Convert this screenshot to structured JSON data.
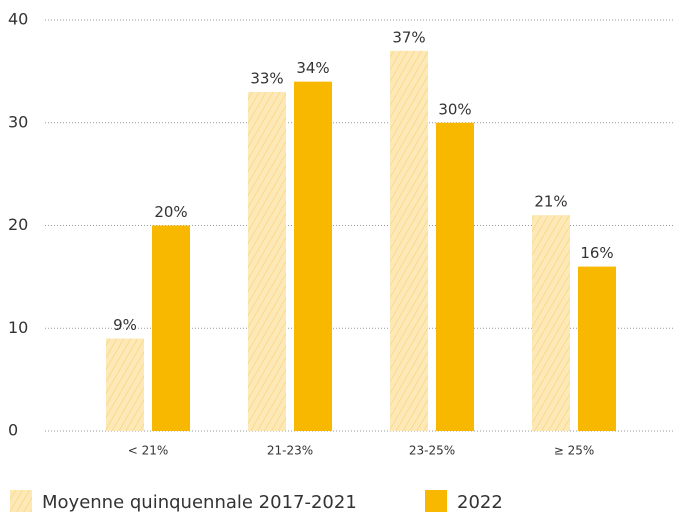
{
  "chart_data": {
    "type": "bar",
    "categories": [
      "< 21%",
      "21-23%",
      "23-25%",
      "≥ 25%"
    ],
    "series": [
      {
        "name": "Moyenne quinquennale 2017-2021",
        "color": "#fbdf9c",
        "hatch": true,
        "values": [
          9,
          33,
          37,
          21
        ],
        "value_labels": [
          "9%",
          "33%",
          "37%",
          "21%"
        ]
      },
      {
        "name": "2022",
        "color": "#f9b800",
        "hatch": false,
        "values": [
          20,
          34,
          30,
          16
        ],
        "value_labels": [
          "20%",
          "34%",
          "30%",
          "16%"
        ]
      }
    ],
    "ylim": [
      0,
      40
    ],
    "yticks": [
      0,
      10,
      20,
      30,
      40
    ],
    "grid": true,
    "legend": "bottom"
  }
}
